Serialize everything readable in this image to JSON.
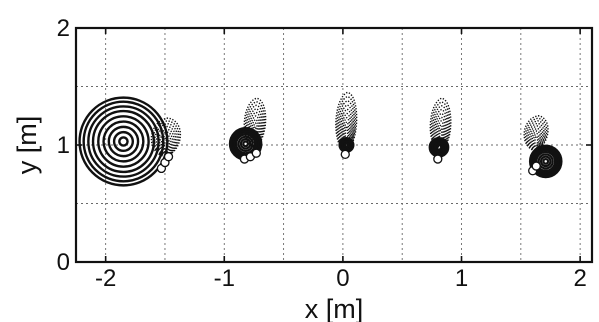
{
  "chart_data": {
    "type": "scatter",
    "xlabel": "x [m]",
    "ylabel": "y [m]",
    "xlim": [
      -2.25,
      2.1
    ],
    "ylim": [
      0,
      2
    ],
    "x_ticks": [
      -2,
      -1,
      0,
      1,
      2
    ],
    "x_tick_labels": [
      "-2",
      "-1",
      "0",
      "1",
      "2"
    ],
    "y_ticks": [
      0,
      1,
      2
    ],
    "y_tick_labels": [
      "0",
      "1",
      "2"
    ],
    "x_grid": [
      -2.25,
      -2,
      -1.5,
      -1,
      -0.5,
      0,
      0.5,
      1,
      1.5,
      2
    ],
    "y_grid": [
      0.5,
      1,
      1.5
    ],
    "grid": true,
    "colors": {
      "ink": "#111111",
      "grid": "#6a6a6a",
      "marker_fill": "#ffffff"
    },
    "targets": [
      {
        "x": -1.85,
        "y": 1.03,
        "rings": [
          0.035,
          0.08,
          0.125,
          0.17,
          0.215,
          0.26,
          0.3,
          0.34,
          0.375
        ],
        "rx_scale": 1.0
      },
      {
        "x": -0.82,
        "y": 1.01,
        "rings": [
          0.02,
          0.04,
          0.06,
          0.08,
          0.1,
          0.115,
          0.13
        ],
        "rx_scale": 1.0
      },
      {
        "x": 0.03,
        "y": 1.0,
        "rings": [
          0.02,
          0.04,
          0.055
        ],
        "rx_scale": 1.0
      },
      {
        "x": 0.81,
        "y": 0.98,
        "rings": [
          0.02,
          0.04,
          0.06,
          0.075
        ],
        "rx_scale": 1.0
      },
      {
        "x": 1.71,
        "y": 0.86,
        "rings": [
          0.02,
          0.04,
          0.06,
          0.08,
          0.1,
          0.115,
          0.13
        ],
        "rx_scale": 1.0
      }
    ],
    "plumes": [
      {
        "base_x": -1.53,
        "base_y": 0.9,
        "top_x": -1.45,
        "top_y": 1.23,
        "half_width": 0.14,
        "levels": 9
      },
      {
        "base_x": -0.78,
        "base_y": 0.98,
        "top_x": -0.7,
        "top_y": 1.4,
        "half_width": 0.1,
        "levels": 9
      },
      {
        "base_x": 0.0,
        "base_y": 0.95,
        "top_x": 0.06,
        "top_y": 1.45,
        "half_width": 0.1,
        "levels": 9
      },
      {
        "base_x": 0.8,
        "base_y": 0.95,
        "top_x": 0.85,
        "top_y": 1.4,
        "half_width": 0.1,
        "levels": 9
      },
      {
        "base_x": 1.58,
        "base_y": 0.95,
        "top_x": 1.68,
        "top_y": 1.25,
        "half_width": 0.11,
        "levels": 9
      }
    ],
    "markers": [
      {
        "x": -1.53,
        "y": 0.8
      },
      {
        "x": -1.5,
        "y": 0.85
      },
      {
        "x": -1.47,
        "y": 0.9
      },
      {
        "x": -0.83,
        "y": 0.88
      },
      {
        "x": -0.78,
        "y": 0.9
      },
      {
        "x": -0.73,
        "y": 0.93
      },
      {
        "x": 0.02,
        "y": 0.92
      },
      {
        "x": 0.8,
        "y": 0.88
      },
      {
        "x": 1.6,
        "y": 0.78
      },
      {
        "x": 1.63,
        "y": 0.82
      }
    ]
  }
}
